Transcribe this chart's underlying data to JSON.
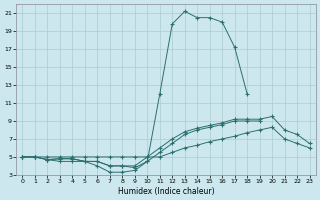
{
  "title": "",
  "xlabel": "Humidex (Indice chaleur)",
  "bg_color": "#cce8ee",
  "grid_color": "#aacccc",
  "line_color": "#2d6e6e",
  "xlim": [
    -0.5,
    23.5
  ],
  "ylim": [
    3,
    22
  ],
  "xticks": [
    0,
    1,
    2,
    3,
    4,
    5,
    6,
    7,
    8,
    9,
    10,
    11,
    12,
    13,
    14,
    15,
    16,
    17,
    18,
    19,
    20,
    21,
    22,
    23
  ],
  "yticks": [
    3,
    5,
    7,
    9,
    11,
    13,
    15,
    17,
    19,
    21
  ],
  "curves": [
    {
      "x": [
        0,
        1,
        2,
        3,
        4,
        5,
        6,
        7,
        8,
        9,
        10,
        11,
        12,
        13,
        14,
        15,
        16,
        17,
        18
      ],
      "y": [
        5,
        5,
        4.7,
        4.5,
        4.5,
        4.5,
        4.0,
        3.3,
        3.3,
        3.5,
        4.5,
        12.0,
        19.8,
        21.2,
        20.5,
        20.5,
        20.0,
        17.2,
        12.0
      ]
    },
    {
      "x": [
        0,
        1,
        2,
        3,
        4,
        5,
        6,
        7,
        8,
        9,
        10,
        11,
        12,
        13,
        14,
        15,
        16,
        17,
        18,
        19,
        20,
        21,
        22,
        23
      ],
      "y": [
        5,
        5,
        4.7,
        4.8,
        4.8,
        4.5,
        4.5,
        4.0,
        4.0,
        4.0,
        5.0,
        6.0,
        7.0,
        7.8,
        8.2,
        8.5,
        8.8,
        9.2,
        9.2,
        9.2,
        9.5,
        8.0,
        7.5,
        6.5
      ]
    },
    {
      "x": [
        0,
        1,
        2,
        3,
        4,
        5,
        6,
        7,
        8,
        9,
        10,
        11,
        12,
        13,
        14,
        15,
        16,
        17,
        18,
        19,
        20,
        21,
        22,
        23
      ],
      "y": [
        5,
        5,
        4.7,
        4.8,
        4.8,
        4.5,
        4.5,
        4.0,
        4.0,
        3.8,
        4.5,
        5.5,
        6.5,
        7.5,
        8.0,
        8.3,
        8.6,
        9.0,
        9.0,
        9.0,
        null,
        null,
        null,
        null
      ]
    },
    {
      "x": [
        0,
        1,
        2,
        3,
        4,
        5,
        6,
        7,
        8,
        9,
        10,
        11,
        12,
        13,
        14,
        15,
        16,
        17,
        18,
        19,
        20,
        21,
        22,
        23
      ],
      "y": [
        5,
        5,
        5,
        5,
        5,
        5,
        5,
        5,
        5,
        5,
        5,
        5,
        5.5,
        6.0,
        6.3,
        6.7,
        7.0,
        7.3,
        7.7,
        8.0,
        8.3,
        7.0,
        6.5,
        6.0
      ]
    }
  ]
}
